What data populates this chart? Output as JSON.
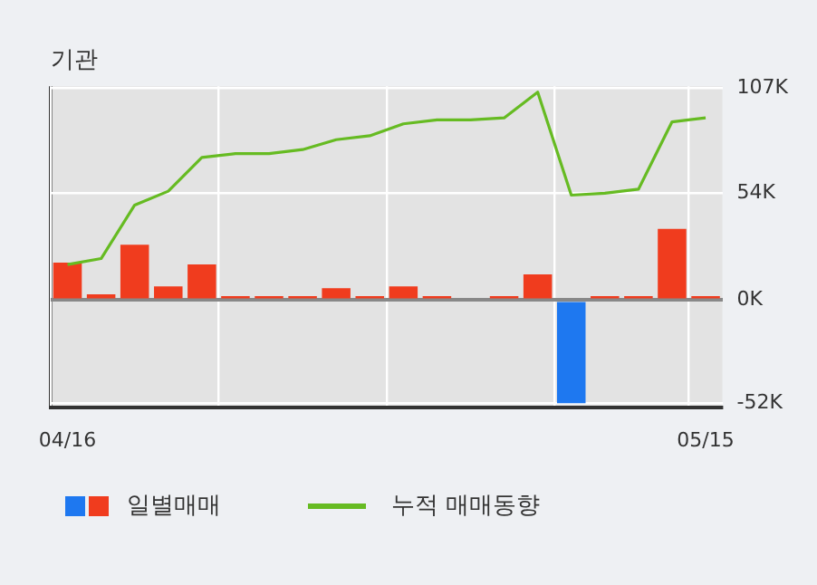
{
  "chart_data": {
    "type": "bar",
    "title": "기관",
    "categories": [
      "04/16",
      null,
      null,
      null,
      null,
      null,
      null,
      null,
      null,
      null,
      null,
      null,
      null,
      null,
      null,
      null,
      null,
      null,
      null,
      "05/15"
    ],
    "series": [
      {
        "name": "일별매매",
        "colors": [
          "#f03c1e",
          "#f03c1e",
          "#f03c1e",
          "#f03c1e",
          "#f03c1e",
          "#f03c1e",
          "#f03c1e",
          "#f03c1e",
          "#f03c1e",
          "#f03c1e",
          "#f03c1e",
          "#f03c1e",
          "#f03c1e",
          "#f03c1e",
          "#f03c1e",
          "#1e78f0",
          "#f03c1e",
          "#f03c1e",
          "#f03c1e",
          "#f03c1e"
        ],
        "values": [
          19,
          3,
          28,
          7,
          18,
          2,
          2,
          2,
          6,
          2,
          7,
          2,
          0,
          2,
          13,
          -52,
          2,
          2,
          36,
          2
        ]
      },
      {
        "name": "누적 매매동향",
        "type": "line",
        "color": "#66bb22",
        "values": [
          18,
          21,
          48,
          55,
          72,
          74,
          74,
          76,
          81,
          83,
          89,
          91,
          91,
          92,
          105,
          53,
          54,
          56,
          90,
          92
        ]
      }
    ],
    "ylim": [
      -54,
      108
    ],
    "yticks": [
      {
        "value": -52,
        "label": "-52K"
      },
      {
        "value": 0,
        "label": "0K"
      },
      {
        "value": 54,
        "label": "54K"
      },
      {
        "value": 107,
        "label": "107K"
      }
    ],
    "grid": true,
    "legend": "bottom",
    "marker": "none"
  }
}
